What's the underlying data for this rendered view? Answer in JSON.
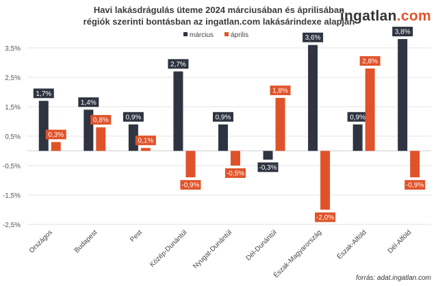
{
  "logo": {
    "text_main": "ingatlan",
    "text_accent": ".com"
  },
  "source": "forrás: adat.ingatlan.com",
  "chart_data": {
    "type": "bar",
    "title": [
      "Havi lakásdrágulás üteme 2024 márciusában és áprilisában",
      "régiók szerinti bontásban az ingatlan.com lakásárindexe alapján"
    ],
    "categories": [
      "Országos",
      "Budapest",
      "Pest",
      "Közép-Dunántúl",
      "Nyugat-Dunántúl",
      "Dél-Dunántúl",
      "Észak-Magyarország",
      "Észak-Alföld",
      "Dél-Alföld"
    ],
    "series": [
      {
        "name": "március",
        "color": "#2e3441",
        "values": [
          1.7,
          1.4,
          0.9,
          2.7,
          0.9,
          -0.3,
          3.6,
          0.9,
          3.8
        ]
      },
      {
        "name": "április",
        "color": "#e0532a",
        "values": [
          0.3,
          0.8,
          0.1,
          -0.9,
          -0.5,
          1.8,
          -2.0,
          2.8,
          -0.9
        ]
      }
    ],
    "y_ticks": [
      3.5,
      2.5,
      1.5,
      0.5,
      -0.5,
      -1.5,
      -2.5
    ],
    "ylim": [
      -2.5,
      3.5
    ],
    "grid": true,
    "legend": "top-center",
    "number_format": "percent, comma decimal"
  }
}
